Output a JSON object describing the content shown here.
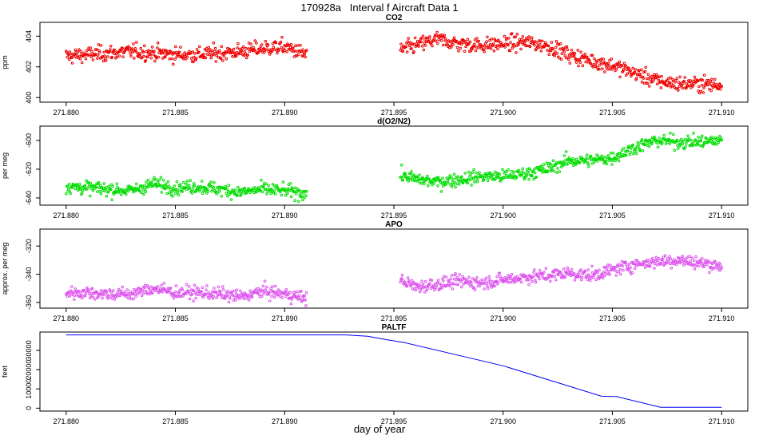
{
  "page": {
    "title": "170928a   Interval f Aircraft Data 1",
    "xlabel": "day of year"
  },
  "chart_data": [
    {
      "type": "scatter",
      "title": "CO2",
      "ylabel": "ppm",
      "xlim": [
        271.8788,
        271.9112
      ],
      "ylim": [
        399.7,
        404.9
      ],
      "xticks": [
        271.88,
        271.885,
        271.89,
        271.895,
        271.9,
        271.905,
        271.91
      ],
      "xtick_labels": [
        "271.880",
        "271.885",
        "271.890",
        "271.895",
        "271.900",
        "271.905",
        "271.910"
      ],
      "yticks": [
        400,
        402,
        404
      ],
      "ytick_labels": [
        "400",
        "402",
        "404"
      ],
      "color": "#ee0000",
      "series": [
        {
          "name": "CO2",
          "x": [
            271.88,
            271.881,
            271.882,
            271.883,
            271.884,
            271.885,
            271.886,
            271.887,
            271.888,
            271.889,
            271.89,
            271.891,
            271.8953,
            271.896,
            271.897,
            271.898,
            271.899,
            271.9,
            271.901,
            271.902,
            271.903,
            271.904,
            271.905,
            271.906,
            271.907,
            271.908,
            271.909,
            271.91
          ],
          "y": [
            402.7,
            402.8,
            402.9,
            403.0,
            402.9,
            402.8,
            402.8,
            402.9,
            403.0,
            403.2,
            403.3,
            402.8,
            403.1,
            403.4,
            403.8,
            403.5,
            403.4,
            403.5,
            403.6,
            403.4,
            402.8,
            402.4,
            402.1,
            401.6,
            401.1,
            400.9,
            400.9,
            400.8
          ],
          "sd": 0.35
        }
      ]
    },
    {
      "type": "scatter",
      "title": "d(O2/N2)",
      "ylabel": "per meg",
      "xlim": [
        271.8788,
        271.9112
      ],
      "ylim": [
        -645,
        -590
      ],
      "xticks": [
        271.88,
        271.885,
        271.89,
        271.895,
        271.9,
        271.905,
        271.91
      ],
      "xtick_labels": [
        "271.880",
        "271.885",
        "271.890",
        "271.895",
        "271.900",
        "271.905",
        "271.910"
      ],
      "yticks": [
        -640,
        -620,
        -600
      ],
      "ytick_labels": [
        "-640",
        "-620",
        "-600"
      ],
      "color": "#00dd00",
      "series": [
        {
          "name": "d(O2/N2)",
          "x": [
            271.88,
            271.881,
            271.882,
            271.883,
            271.884,
            271.885,
            271.886,
            271.887,
            271.888,
            271.889,
            271.89,
            271.891,
            271.8953,
            271.896,
            271.897,
            271.898,
            271.899,
            271.9,
            271.901,
            271.902,
            271.903,
            271.904,
            271.905,
            271.906,
            271.907,
            271.908,
            271.909,
            271.91
          ],
          "y": [
            -632,
            -633,
            -634,
            -635,
            -630,
            -633,
            -632,
            -634,
            -636,
            -634,
            -635,
            -637,
            -624,
            -627,
            -629,
            -627,
            -625,
            -625,
            -623,
            -620,
            -614,
            -614,
            -612,
            -605,
            -600,
            -601,
            -601,
            -600
          ],
          "sd": 3.2
        }
      ]
    },
    {
      "type": "scatter",
      "title": "APO",
      "ylabel": "approx. per meg",
      "xlim": [
        271.8788,
        271.9112
      ],
      "ylim": [
        -364,
        -308
      ],
      "xticks": [
        271.88,
        271.885,
        271.89,
        271.895,
        271.9,
        271.905,
        271.91
      ],
      "xtick_labels": [
        "271.880",
        "271.885",
        "271.890",
        "271.895",
        "271.900",
        "271.905",
        "271.910"
      ],
      "yticks": [
        -360,
        -340,
        -320
      ],
      "ytick_labels": [
        "-360",
        "-340",
        "-320"
      ],
      "color": "#dd55ee",
      "series": [
        {
          "name": "APO",
          "x": [
            271.88,
            271.881,
            271.882,
            271.883,
            271.884,
            271.885,
            271.886,
            271.887,
            271.888,
            271.889,
            271.89,
            271.891,
            271.8953,
            271.896,
            271.897,
            271.898,
            271.899,
            271.9,
            271.901,
            271.902,
            271.903,
            271.904,
            271.905,
            271.906,
            271.907,
            271.908,
            271.909,
            271.91
          ],
          "y": [
            -353,
            -353,
            -354,
            -354,
            -350,
            -353,
            -353,
            -354,
            -356,
            -352,
            -354,
            -357,
            -344,
            -349,
            -347,
            -345,
            -346,
            -344,
            -342,
            -341,
            -339,
            -341,
            -337,
            -333,
            -331,
            -330,
            -332,
            -334
          ],
          "sd": 3.2
        }
      ]
    },
    {
      "type": "line",
      "title": "PALTF",
      "ylabel": "feet",
      "xlim": [
        271.8788,
        271.9112
      ],
      "ylim": [
        -1500,
        39500
      ],
      "xticks": [
        271.88,
        271.885,
        271.89,
        271.895,
        271.9,
        271.905,
        271.91
      ],
      "xtick_labels": [
        "271.880",
        "271.885",
        "271.890",
        "271.895",
        "271.900",
        "271.905",
        "271.910"
      ],
      "yticks": [
        0,
        10000,
        20000,
        30000
      ],
      "ytick_labels": [
        "0",
        "10000",
        "20000",
        "30000"
      ],
      "color": "#0000ff",
      "series": [
        {
          "name": "PALTF",
          "x": [
            271.88,
            271.8928,
            271.8938,
            271.8947,
            271.8955,
            271.9,
            271.9045,
            271.9052,
            271.9072,
            271.91
          ],
          "y": [
            38000,
            38000,
            37300,
            35500,
            34000,
            22000,
            6200,
            6000,
            500,
            500
          ]
        }
      ]
    }
  ]
}
